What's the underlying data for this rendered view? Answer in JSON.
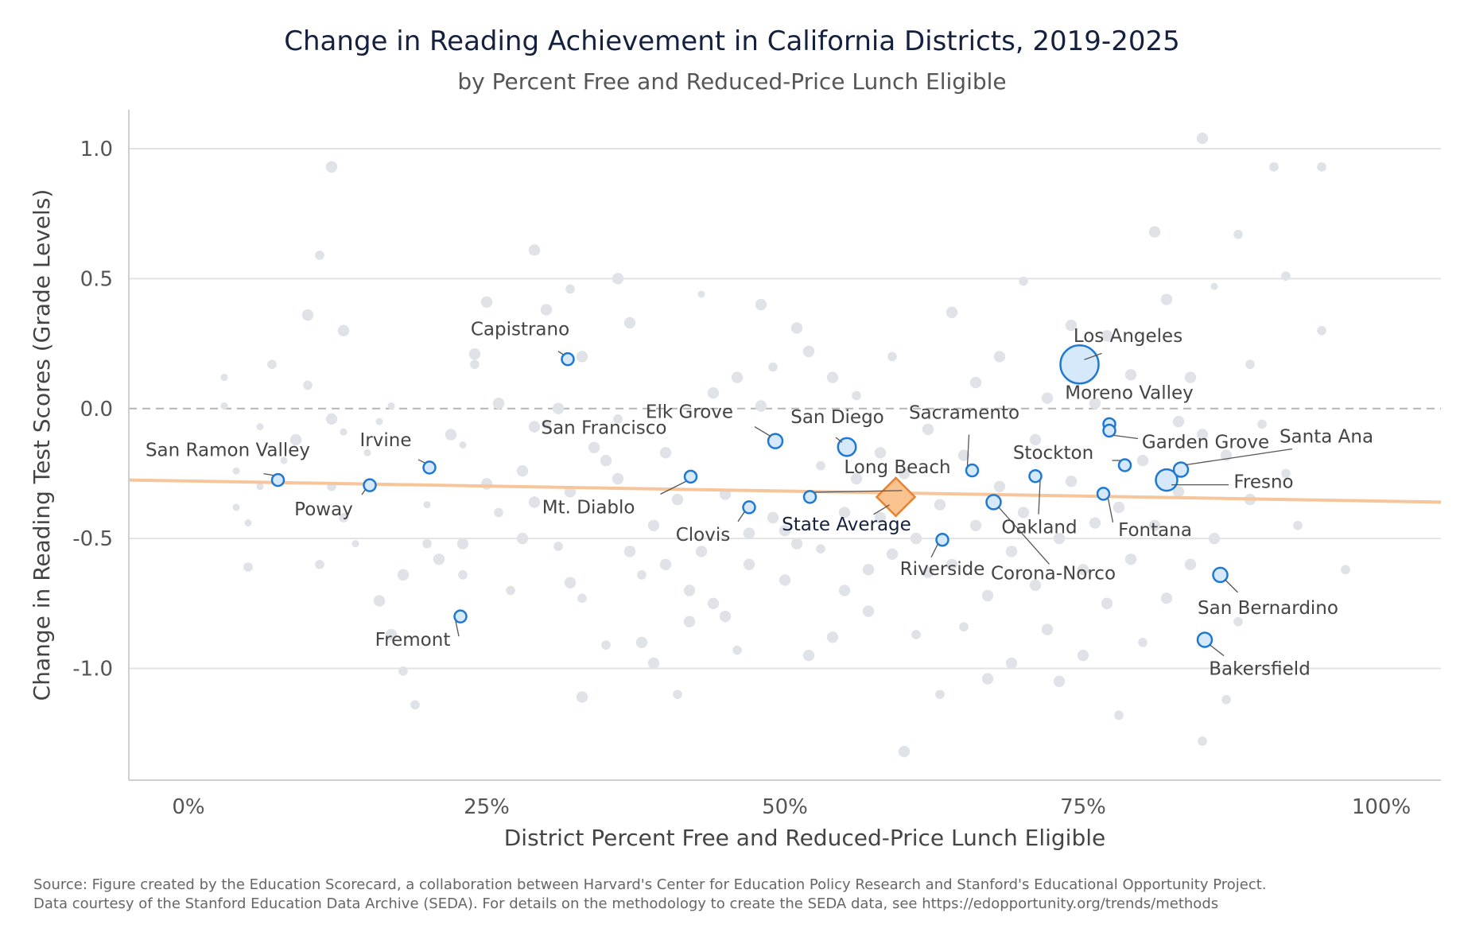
{
  "title": "Change in Reading Achievement in California Districts, 2019-2025",
  "subtitle": "by Percent Free and Reduced-Price Lunch Eligible",
  "source": {
    "line1": "Source: Figure created by the Education Scorecard, a collaboration between Harvard's Center for Education Policy Research and Stanford's Educational Opportunity Project.",
    "line2": "Data courtesy of the Stanford Education Data Archive (SEDA). For details on the methodology to create the SEDA data, see https://edopportunity.org/trends/methods"
  },
  "colors": {
    "background_points": "#dfe3e8",
    "highlight_fill": "#d6e9fb",
    "highlight_stroke": "#1f78d1",
    "trend": "#f6c59b",
    "state_average_fill": "#f9c28f",
    "state_average_stroke": "#e8822e",
    "grid": "#e3e3e3",
    "zero_line": "#b5b5b5",
    "title": "#15203f"
  },
  "chart_data": {
    "type": "scatter",
    "title": "Change in Reading Achievement in California Districts, 2019-2025",
    "subtitle": "by Percent Free and Reduced-Price Lunch Eligible",
    "xlabel": "District Percent Free and Reduced-Price Lunch Eligible",
    "ylabel": "Change in Reading Test Scores (Grade Levels)",
    "xlim": [
      -0.05,
      1.05
    ],
    "ylim": [
      -1.43,
      1.15
    ],
    "x_ticks": [
      0,
      0.25,
      0.5,
      0.75,
      1.0
    ],
    "x_tick_labels": [
      "0%",
      "25%",
      "50%",
      "75%",
      "100%"
    ],
    "y_ticks": [
      1.0,
      0.5,
      0.0,
      -0.5,
      -1.0
    ],
    "y_tick_labels": [
      "1.0",
      "0.5",
      "0.0",
      "-0.5",
      "-1.0"
    ],
    "zero_line": "dashed",
    "grid": "horizontal",
    "trend_line": {
      "x": [
        -0.05,
        1.05
      ],
      "y": [
        -0.275,
        -0.36
      ]
    },
    "state_average": {
      "label": "State Average",
      "x": 0.593,
      "y": -0.34
    },
    "highlighted": [
      {
        "name": "San Ramon Valley",
        "x": 0.075,
        "y": -0.275,
        "size": 1
      },
      {
        "name": "Poway",
        "x": 0.152,
        "y": -0.295,
        "size": 1
      },
      {
        "name": "Irvine",
        "x": 0.202,
        "y": -0.227,
        "size": 1
      },
      {
        "name": "Fremont",
        "x": 0.228,
        "y": -0.8,
        "size": 1
      },
      {
        "name": "Capistrano",
        "x": 0.318,
        "y": 0.19,
        "size": 1
      },
      {
        "name": "San Francisco",
        "x": 0.421,
        "y": -0.262,
        "size": 1
      },
      {
        "name": "Mt. Diablo",
        "x": 0.421,
        "y": -0.262,
        "size": 1
      },
      {
        "name": "Clovis",
        "x": 0.47,
        "y": -0.38,
        "size": 1
      },
      {
        "name": "Elk Grove",
        "x": 0.492,
        "y": -0.125,
        "size": 1.2
      },
      {
        "name": "San Diego",
        "x": 0.552,
        "y": -0.148,
        "size": 1.5
      },
      {
        "name": "Long Beach",
        "x": 0.521,
        "y": -0.34,
        "size": 1
      },
      {
        "name": "Riverside",
        "x": 0.632,
        "y": -0.505,
        "size": 1
      },
      {
        "name": "Sacramento",
        "x": 0.657,
        "y": -0.238,
        "size": 1
      },
      {
        "name": "Corona-Norco",
        "x": 0.675,
        "y": -0.36,
        "size": 1.2
      },
      {
        "name": "Oakland",
        "x": 0.71,
        "y": -0.26,
        "size": 1
      },
      {
        "name": "Los Angeles",
        "x": 0.747,
        "y": 0.17,
        "size": 3.2
      },
      {
        "name": "Moreno Valley",
        "x": 0.772,
        "y": -0.06,
        "size": 1
      },
      {
        "name": "Garden Grove",
        "x": 0.772,
        "y": -0.085,
        "size": 1
      },
      {
        "name": "Stockton",
        "x": 0.785,
        "y": -0.218,
        "size": 1
      },
      {
        "name": "Fontana",
        "x": 0.767,
        "y": -0.328,
        "size": 1
      },
      {
        "name": "Fresno",
        "x": 0.82,
        "y": -0.275,
        "size": 1.8
      },
      {
        "name": "Santa Ana",
        "x": 0.832,
        "y": -0.235,
        "size": 1.2
      },
      {
        "name": "San Bernardino",
        "x": 0.865,
        "y": -0.64,
        "size": 1.2
      },
      {
        "name": "Bakersfield",
        "x": 0.852,
        "y": -0.89,
        "size": 1.2
      }
    ],
    "other_districts": [
      [
        0.03,
        0.12,
        1
      ],
      [
        0.03,
        0.01,
        1
      ],
      [
        0.04,
        -0.24,
        1
      ],
      [
        0.04,
        -0.38,
        1
      ],
      [
        0.05,
        -0.61,
        1.3
      ],
      [
        0.05,
        -0.44,
        1
      ],
      [
        0.06,
        -0.07,
        1
      ],
      [
        0.06,
        -0.3,
        1
      ],
      [
        0.07,
        0.17,
        1.3
      ],
      [
        0.08,
        -0.2,
        1
      ],
      [
        0.09,
        -0.12,
        1.6
      ],
      [
        0.1,
        0.36,
        1.6
      ],
      [
        0.1,
        0.09,
        1.3
      ],
      [
        0.11,
        -0.6,
        1.3
      ],
      [
        0.11,
        0.59,
        1.3
      ],
      [
        0.12,
        -0.3,
        1.3
      ],
      [
        0.12,
        -0.04,
        1.6
      ],
      [
        0.13,
        -0.09,
        1
      ],
      [
        0.13,
        0.3,
        1.6
      ],
      [
        0.12,
        0.93,
        1.6
      ],
      [
        0.13,
        -0.42,
        1.3
      ],
      [
        0.14,
        -0.52,
        1
      ],
      [
        0.15,
        -0.17,
        1
      ],
      [
        0.16,
        -0.05,
        1
      ],
      [
        0.16,
        -0.74,
        1.6
      ],
      [
        0.17,
        -0.87,
        1.6
      ],
      [
        0.17,
        0.01,
        1
      ],
      [
        0.18,
        -0.64,
        1.6
      ],
      [
        0.18,
        -1.01,
        1.3
      ],
      [
        0.19,
        -1.14,
        1.3
      ],
      [
        0.2,
        -0.37,
        1
      ],
      [
        0.2,
        -0.52,
        1.3
      ],
      [
        0.21,
        -0.58,
        1.6
      ],
      [
        0.22,
        -0.1,
        1.6
      ],
      [
        0.23,
        -0.14,
        1
      ],
      [
        0.23,
        -0.52,
        1.6
      ],
      [
        0.23,
        -0.64,
        1.3
      ],
      [
        0.24,
        0.17,
        1.3
      ],
      [
        0.24,
        0.21,
        1.6
      ],
      [
        0.25,
        0.41,
        1.6
      ],
      [
        0.25,
        -0.29,
        1.6
      ],
      [
        0.26,
        -0.4,
        1.3
      ],
      [
        0.26,
        0.02,
        1.6
      ],
      [
        0.27,
        -0.7,
        1.3
      ],
      [
        0.28,
        -0.24,
        1.6
      ],
      [
        0.28,
        -0.5,
        1.6
      ],
      [
        0.29,
        0.61,
        1.6
      ],
      [
        0.29,
        -0.07,
        1.6
      ],
      [
        0.29,
        -0.36,
        1.6
      ],
      [
        0.3,
        0.38,
        1.6
      ],
      [
        0.3,
        -0.06,
        1.3
      ],
      [
        0.31,
        -0.53,
        1.3
      ],
      [
        0.31,
        0.0,
        1.6
      ],
      [
        0.32,
        -0.32,
        1.6
      ],
      [
        0.32,
        -0.67,
        1.6
      ],
      [
        0.32,
        0.46,
        1.3
      ],
      [
        0.33,
        -0.73,
        1.3
      ],
      [
        0.33,
        -1.11,
        1.6
      ],
      [
        0.33,
        0.2,
        1.6
      ],
      [
        0.34,
        -0.15,
        1.6
      ],
      [
        0.35,
        -0.2,
        1.6
      ],
      [
        0.35,
        -0.91,
        1.3
      ],
      [
        0.36,
        0.5,
        1.6
      ],
      [
        0.36,
        -0.04,
        1.3
      ],
      [
        0.36,
        -0.27,
        1.6
      ],
      [
        0.37,
        -0.55,
        1.6
      ],
      [
        0.37,
        0.33,
        1.6
      ],
      [
        0.38,
        -0.64,
        1.3
      ],
      [
        0.38,
        -0.9,
        1.6
      ],
      [
        0.39,
        -0.45,
        1.6
      ],
      [
        0.39,
        -0.98,
        1.6
      ],
      [
        0.4,
        -0.17,
        1.6
      ],
      [
        0.4,
        -0.6,
        1.6
      ],
      [
        0.41,
        -0.35,
        1.6
      ],
      [
        0.41,
        -1.1,
        1.3
      ],
      [
        0.42,
        -0.82,
        1.6
      ],
      [
        0.42,
        -0.7,
        1.6
      ],
      [
        0.43,
        0.44,
        1
      ],
      [
        0.43,
        -0.55,
        1.6
      ],
      [
        0.44,
        0.06,
        1.6
      ],
      [
        0.44,
        -0.75,
        1.6
      ],
      [
        0.45,
        -0.8,
        1.6
      ],
      [
        0.45,
        -0.33,
        1.6
      ],
      [
        0.46,
        -0.93,
        1.3
      ],
      [
        0.46,
        0.12,
        1.6
      ],
      [
        0.47,
        -0.48,
        1.6
      ],
      [
        0.47,
        -0.6,
        1.6
      ],
      [
        0.48,
        0.01,
        1.6
      ],
      [
        0.48,
        0.4,
        1.6
      ],
      [
        0.49,
        -0.42,
        1.6
      ],
      [
        0.49,
        0.16,
        1.3
      ],
      [
        0.5,
        -0.47,
        1.6
      ],
      [
        0.5,
        -0.66,
        1.6
      ],
      [
        0.51,
        -0.52,
        1.6
      ],
      [
        0.51,
        0.31,
        1.6
      ],
      [
        0.52,
        0.22,
        1.6
      ],
      [
        0.52,
        -0.95,
        1.6
      ],
      [
        0.53,
        -0.54,
        1.3
      ],
      [
        0.53,
        -0.22,
        1.3
      ],
      [
        0.54,
        -0.88,
        1.6
      ],
      [
        0.54,
        0.12,
        1.6
      ],
      [
        0.55,
        -0.4,
        1.6
      ],
      [
        0.55,
        -0.7,
        1.6
      ],
      [
        0.56,
        -0.27,
        1.6
      ],
      [
        0.56,
        0.05,
        1.3
      ],
      [
        0.57,
        -0.62,
        1.6
      ],
      [
        0.57,
        -0.78,
        1.6
      ],
      [
        0.58,
        -0.17,
        1.6
      ],
      [
        0.58,
        -0.42,
        1.6
      ],
      [
        0.59,
        -0.56,
        1.6
      ],
      [
        0.59,
        0.2,
        1.3
      ],
      [
        0.6,
        -0.25,
        1.6
      ],
      [
        0.6,
        -1.32,
        1.6
      ],
      [
        0.61,
        -0.5,
        1.6
      ],
      [
        0.61,
        -0.87,
        1.3
      ],
      [
        0.62,
        -0.08,
        1.6
      ],
      [
        0.62,
        -0.63,
        1.6
      ],
      [
        0.63,
        -0.37,
        1.6
      ],
      [
        0.63,
        -1.1,
        1.3
      ],
      [
        0.64,
        0.37,
        1.6
      ],
      [
        0.64,
        -0.6,
        1.6
      ],
      [
        0.65,
        -0.18,
        1.6
      ],
      [
        0.65,
        -0.84,
        1.3
      ],
      [
        0.66,
        -0.45,
        1.6
      ],
      [
        0.66,
        0.1,
        1.6
      ],
      [
        0.67,
        -0.72,
        1.6
      ],
      [
        0.67,
        -1.04,
        1.6
      ],
      [
        0.68,
        -0.3,
        1.6
      ],
      [
        0.68,
        0.2,
        1.6
      ],
      [
        0.69,
        -0.55,
        1.6
      ],
      [
        0.69,
        -0.98,
        1.6
      ],
      [
        0.7,
        0.49,
        1.3
      ],
      [
        0.7,
        -0.4,
        1.6
      ],
      [
        0.71,
        -0.68,
        1.6
      ],
      [
        0.71,
        -0.12,
        1.6
      ],
      [
        0.72,
        -0.85,
        1.6
      ],
      [
        0.72,
        0.04,
        1.6
      ],
      [
        0.73,
        -0.5,
        1.6
      ],
      [
        0.73,
        -1.05,
        1.6
      ],
      [
        0.74,
        0.32,
        1.6
      ],
      [
        0.74,
        -0.28,
        1.6
      ],
      [
        0.75,
        -0.62,
        1.6
      ],
      [
        0.75,
        -0.95,
        1.6
      ],
      [
        0.76,
        0.02,
        1.6
      ],
      [
        0.76,
        -0.44,
        1.6
      ],
      [
        0.77,
        -0.75,
        1.6
      ],
      [
        0.77,
        0.28,
        1.6
      ],
      [
        0.78,
        -0.38,
        1.6
      ],
      [
        0.78,
        -1.18,
        1.3
      ],
      [
        0.79,
        0.13,
        1.6
      ],
      [
        0.79,
        -0.58,
        1.6
      ],
      [
        0.8,
        -0.2,
        1.6
      ],
      [
        0.8,
        -0.9,
        1.3
      ],
      [
        0.81,
        0.68,
        1.6
      ],
      [
        0.81,
        -0.45,
        1.6
      ],
      [
        0.82,
        0.42,
        1.6
      ],
      [
        0.82,
        -0.73,
        1.6
      ],
      [
        0.83,
        -0.05,
        1.6
      ],
      [
        0.83,
        -0.32,
        1.6
      ],
      [
        0.84,
        0.12,
        1.6
      ],
      [
        0.84,
        -0.6,
        1.6
      ],
      [
        0.85,
        -1.28,
        1.3
      ],
      [
        0.85,
        -0.1,
        1.6
      ],
      [
        0.85,
        1.04,
        1.6
      ],
      [
        0.86,
        0.47,
        1
      ],
      [
        0.86,
        -0.5,
        1.6
      ],
      [
        0.87,
        -0.18,
        1.6
      ],
      [
        0.87,
        -1.12,
        1.3
      ],
      [
        0.88,
        0.67,
        1.3
      ],
      [
        0.88,
        -0.82,
        1.3
      ],
      [
        0.89,
        -0.35,
        1.6
      ],
      [
        0.89,
        0.17,
        1.3
      ],
      [
        0.9,
        -0.06,
        1.3
      ],
      [
        0.91,
        0.93,
        1.3
      ],
      [
        0.92,
        -0.25,
        1.3
      ],
      [
        0.92,
        0.51,
        1.3
      ],
      [
        0.93,
        -0.45,
        1.3
      ],
      [
        0.95,
        0.93,
        1.3
      ],
      [
        0.95,
        0.3,
        1.3
      ],
      [
        0.97,
        -0.62,
        1.3
      ]
    ]
  }
}
